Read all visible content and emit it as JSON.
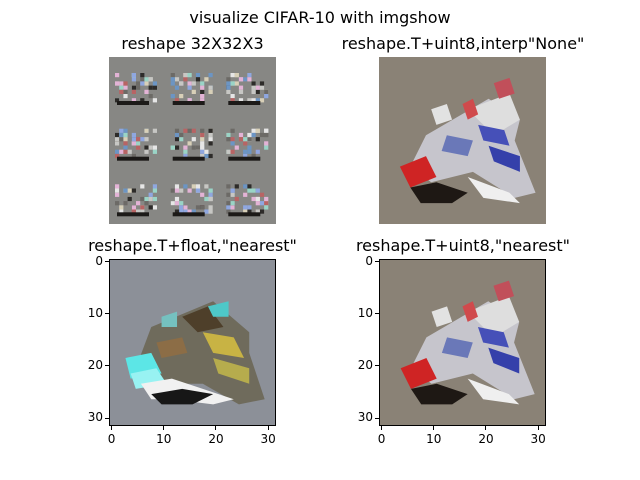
{
  "figure": {
    "title": "visualize CIFAR-10 with imgshow"
  },
  "panels": [
    {
      "title": "reshape 32X32X3",
      "axes_visible": false,
      "description": "tiled 3x3 mosaic of the image"
    },
    {
      "title": "reshape.T+uint8,interp\"None\"",
      "axes_visible": false,
      "description": "airplane image, smooth interpolation"
    },
    {
      "title": "reshape.T+float,\"nearest\"",
      "axes_visible": true,
      "description": "airplane image with float colormap distortion"
    },
    {
      "title": "reshape.T+uint8,\"nearest\"",
      "axes_visible": true,
      "description": "airplane image, nearest interpolation"
    }
  ],
  "axis_ticks": {
    "x": [
      "0",
      "10",
      "20",
      "30"
    ],
    "y": [
      "0",
      "10",
      "20",
      "30"
    ]
  },
  "colors": {
    "background": "#ffffff",
    "tan_bg": "#8a8276",
    "gray_bg": "#8c8f94"
  }
}
